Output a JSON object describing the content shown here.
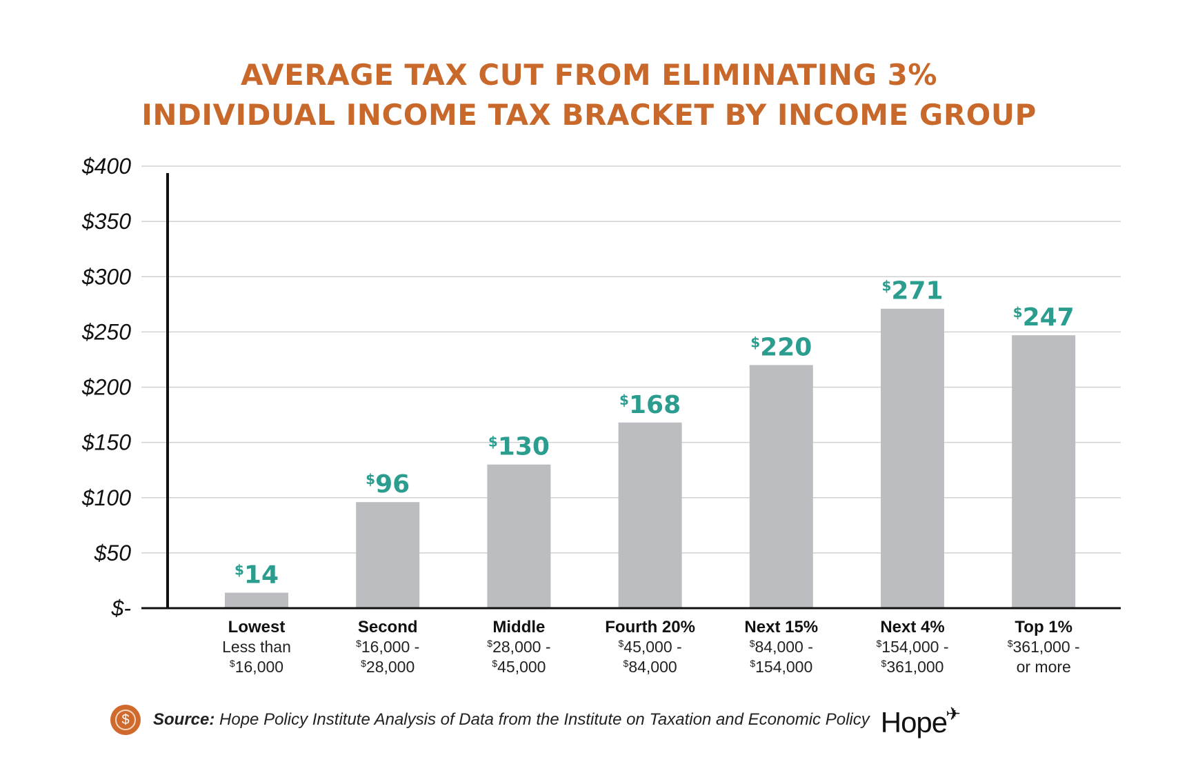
{
  "title_lines": [
    "AVERAGE TAX CUT FROM ELIMINATING 3%",
    "INDIVIDUAL INCOME TAX BRACKET BY INCOME GROUP"
  ],
  "chart_data": {
    "type": "bar",
    "title": "AVERAGE TAX CUT FROM ELIMINATING 3% INDIVIDUAL INCOME TAX BRACKET BY INCOME GROUP",
    "ylim": [
      0,
      400
    ],
    "y_ticks": [
      0,
      50,
      100,
      150,
      200,
      250,
      300,
      350,
      400
    ],
    "y_tick_labels": [
      "$-",
      "$50",
      "$100",
      "$150",
      "$200",
      "$250",
      "$300",
      "$350",
      "$400"
    ],
    "grid": true,
    "categories": [
      {
        "name": "Lowest",
        "range": [
          "Less than",
          "$16,000"
        ]
      },
      {
        "name": "Second",
        "range": [
          "$16,000 -",
          "$28,000"
        ]
      },
      {
        "name": "Middle",
        "range": [
          "$28,000 -",
          "$45,000"
        ]
      },
      {
        "name": "Fourth 20%",
        "range": [
          "$45,000 -",
          "$84,000"
        ]
      },
      {
        "name": "Next 15%",
        "range": [
          "$84,000 -",
          "$154,000"
        ]
      },
      {
        "name": "Next 4%",
        "range": [
          "$154,000 -",
          "$361,000"
        ]
      },
      {
        "name": "Top 1%",
        "range": [
          "$361,000 -",
          "or more"
        ]
      }
    ],
    "values": [
      14,
      96,
      130,
      168,
      220,
      271,
      247
    ],
    "data_labels": [
      "$14",
      "$96",
      "$130",
      "$168",
      "$220",
      "$271",
      "$247"
    ],
    "colors": {
      "bar": "#bcbdc0",
      "data_label": "#2a9d8f",
      "title": "#c8692b",
      "grid": "#d0d0d0",
      "axis": "#111111"
    }
  },
  "footer": {
    "source_label": "Source:",
    "source_text": "Hope Policy Institute Analysis of Data from the Institute on Taxation and Economic Policy",
    "icon": "dollar-coin-icon",
    "logo_text": "Hope",
    "logo_icon": "dove-icon"
  }
}
